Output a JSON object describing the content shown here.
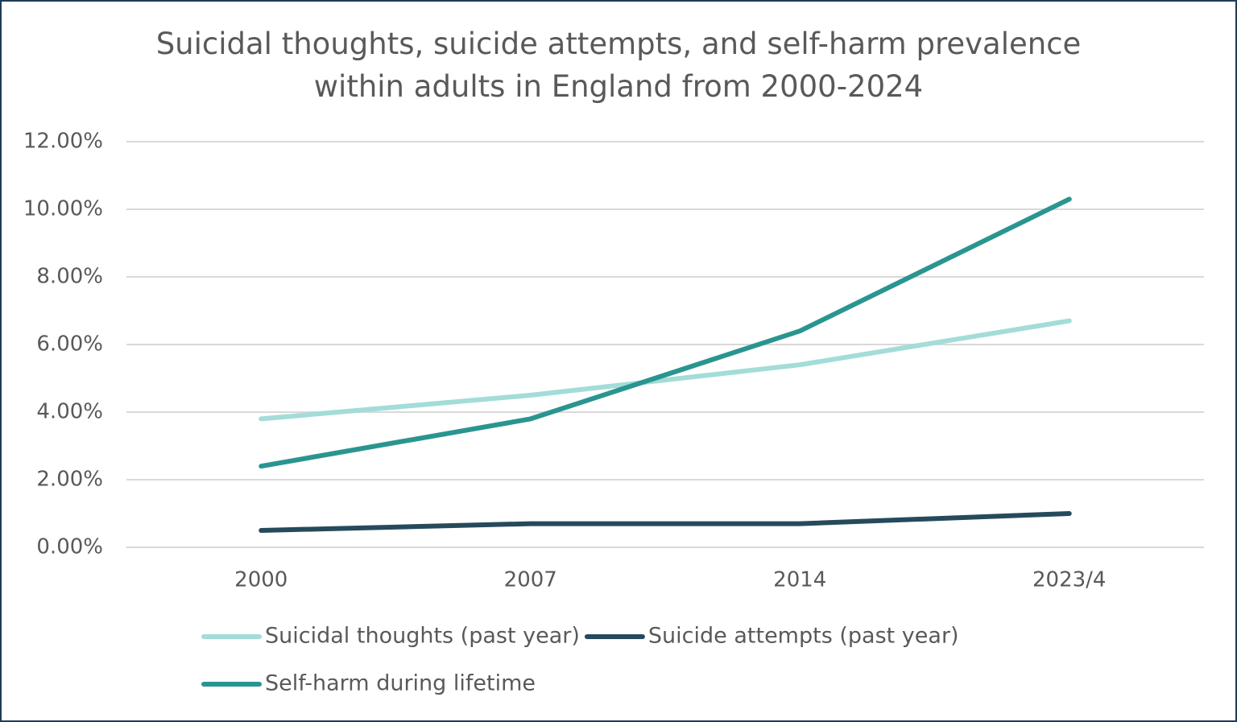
{
  "chart_data": {
    "type": "line",
    "title": "Suicidal thoughts, suicide attempts, and self-harm prevalence within adults in England from 2000-2024",
    "categories": [
      "2000",
      "2007",
      "2014",
      "2023/4"
    ],
    "series": [
      {
        "name": "Suicidal thoughts (past year)",
        "color": "#a3dcd8",
        "values": [
          3.8,
          4.5,
          5.4,
          6.7
        ]
      },
      {
        "name": "Suicide attempts (past year)",
        "color": "#264a5c",
        "values": [
          0.5,
          0.7,
          0.7,
          1.0
        ]
      },
      {
        "name": "Self-harm during lifetime",
        "color": "#2a9590",
        "values": [
          2.4,
          3.8,
          6.4,
          10.3
        ]
      }
    ],
    "ylim": [
      0,
      12
    ],
    "yticks": [
      {
        "value": 0,
        "label": "0.00%"
      },
      {
        "value": 2,
        "label": "2.00%"
      },
      {
        "value": 4,
        "label": "4.00%"
      },
      {
        "value": 6,
        "label": "6.00%"
      },
      {
        "value": 8,
        "label": "8.00%"
      },
      {
        "value": 10,
        "label": "10.00%"
      },
      {
        "value": 12,
        "label": "12.00%"
      }
    ],
    "grid": true,
    "legend": "bottom"
  }
}
